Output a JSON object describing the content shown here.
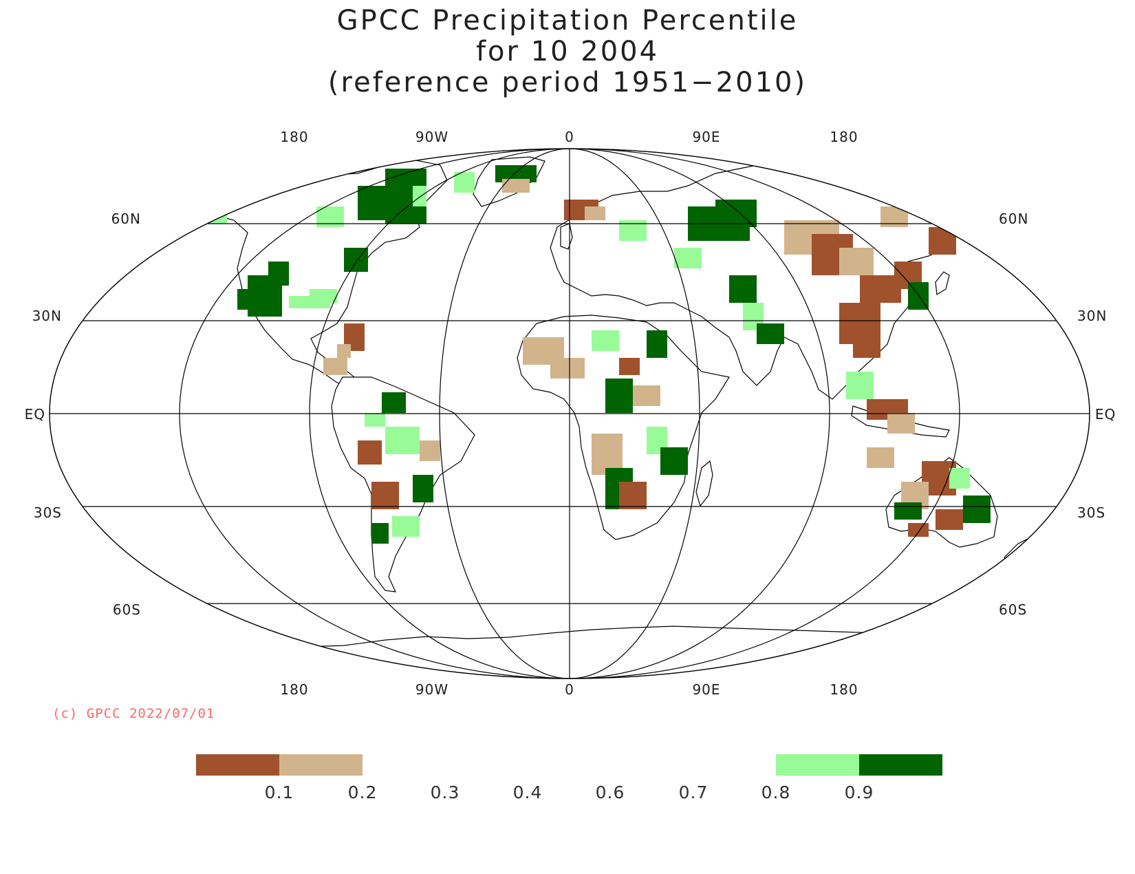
{
  "title": {
    "line1": "GPCC Precipitation Percentile",
    "line2": "for 10 2004",
    "line3": "(reference period 1951−2010)"
  },
  "axes": {
    "top_lon_labels": [
      "180",
      "90W",
      "0",
      "90E",
      "180"
    ],
    "bottom_lon_labels": [
      "180",
      "90W",
      "0",
      "90E",
      "180"
    ],
    "left_lat_labels": [
      "60N",
      "30N",
      "EQ",
      "30S",
      "60S"
    ],
    "right_lat_labels": [
      "60N",
      "30N",
      "EQ",
      "30S",
      "60S"
    ]
  },
  "copyright": "(c) GPCC 2022/07/01",
  "legend": {
    "ticks": [
      "0.1",
      "0.2",
      "0.3",
      "0.4",
      "0.6",
      "0.7",
      "0.8",
      "0.9"
    ],
    "swatches": [
      {
        "range": "<0.1",
        "color": "#a0522d"
      },
      {
        "range": "0.1-0.2",
        "color": "#d2b48c"
      },
      {
        "range": "0.2-0.3",
        "color": "#ffffff"
      },
      {
        "range": "0.3-0.4",
        "color": "#ffffff"
      },
      {
        "range": "0.4-0.6",
        "color": "#ffffff"
      },
      {
        "range": "0.6-0.7",
        "color": "#ffffff"
      },
      {
        "range": "0.7-0.8",
        "color": "#ffffff"
      },
      {
        "range": "0.8-0.9",
        "color": "#98fb98"
      },
      {
        "range": ">0.9",
        "color": "#006400"
      }
    ]
  },
  "colors": {
    "very_dry": "#a0522d",
    "dry": "#d2b48c",
    "wet": "#98fb98",
    "very_wet": "#006400",
    "copyright": "#ff6666"
  }
}
